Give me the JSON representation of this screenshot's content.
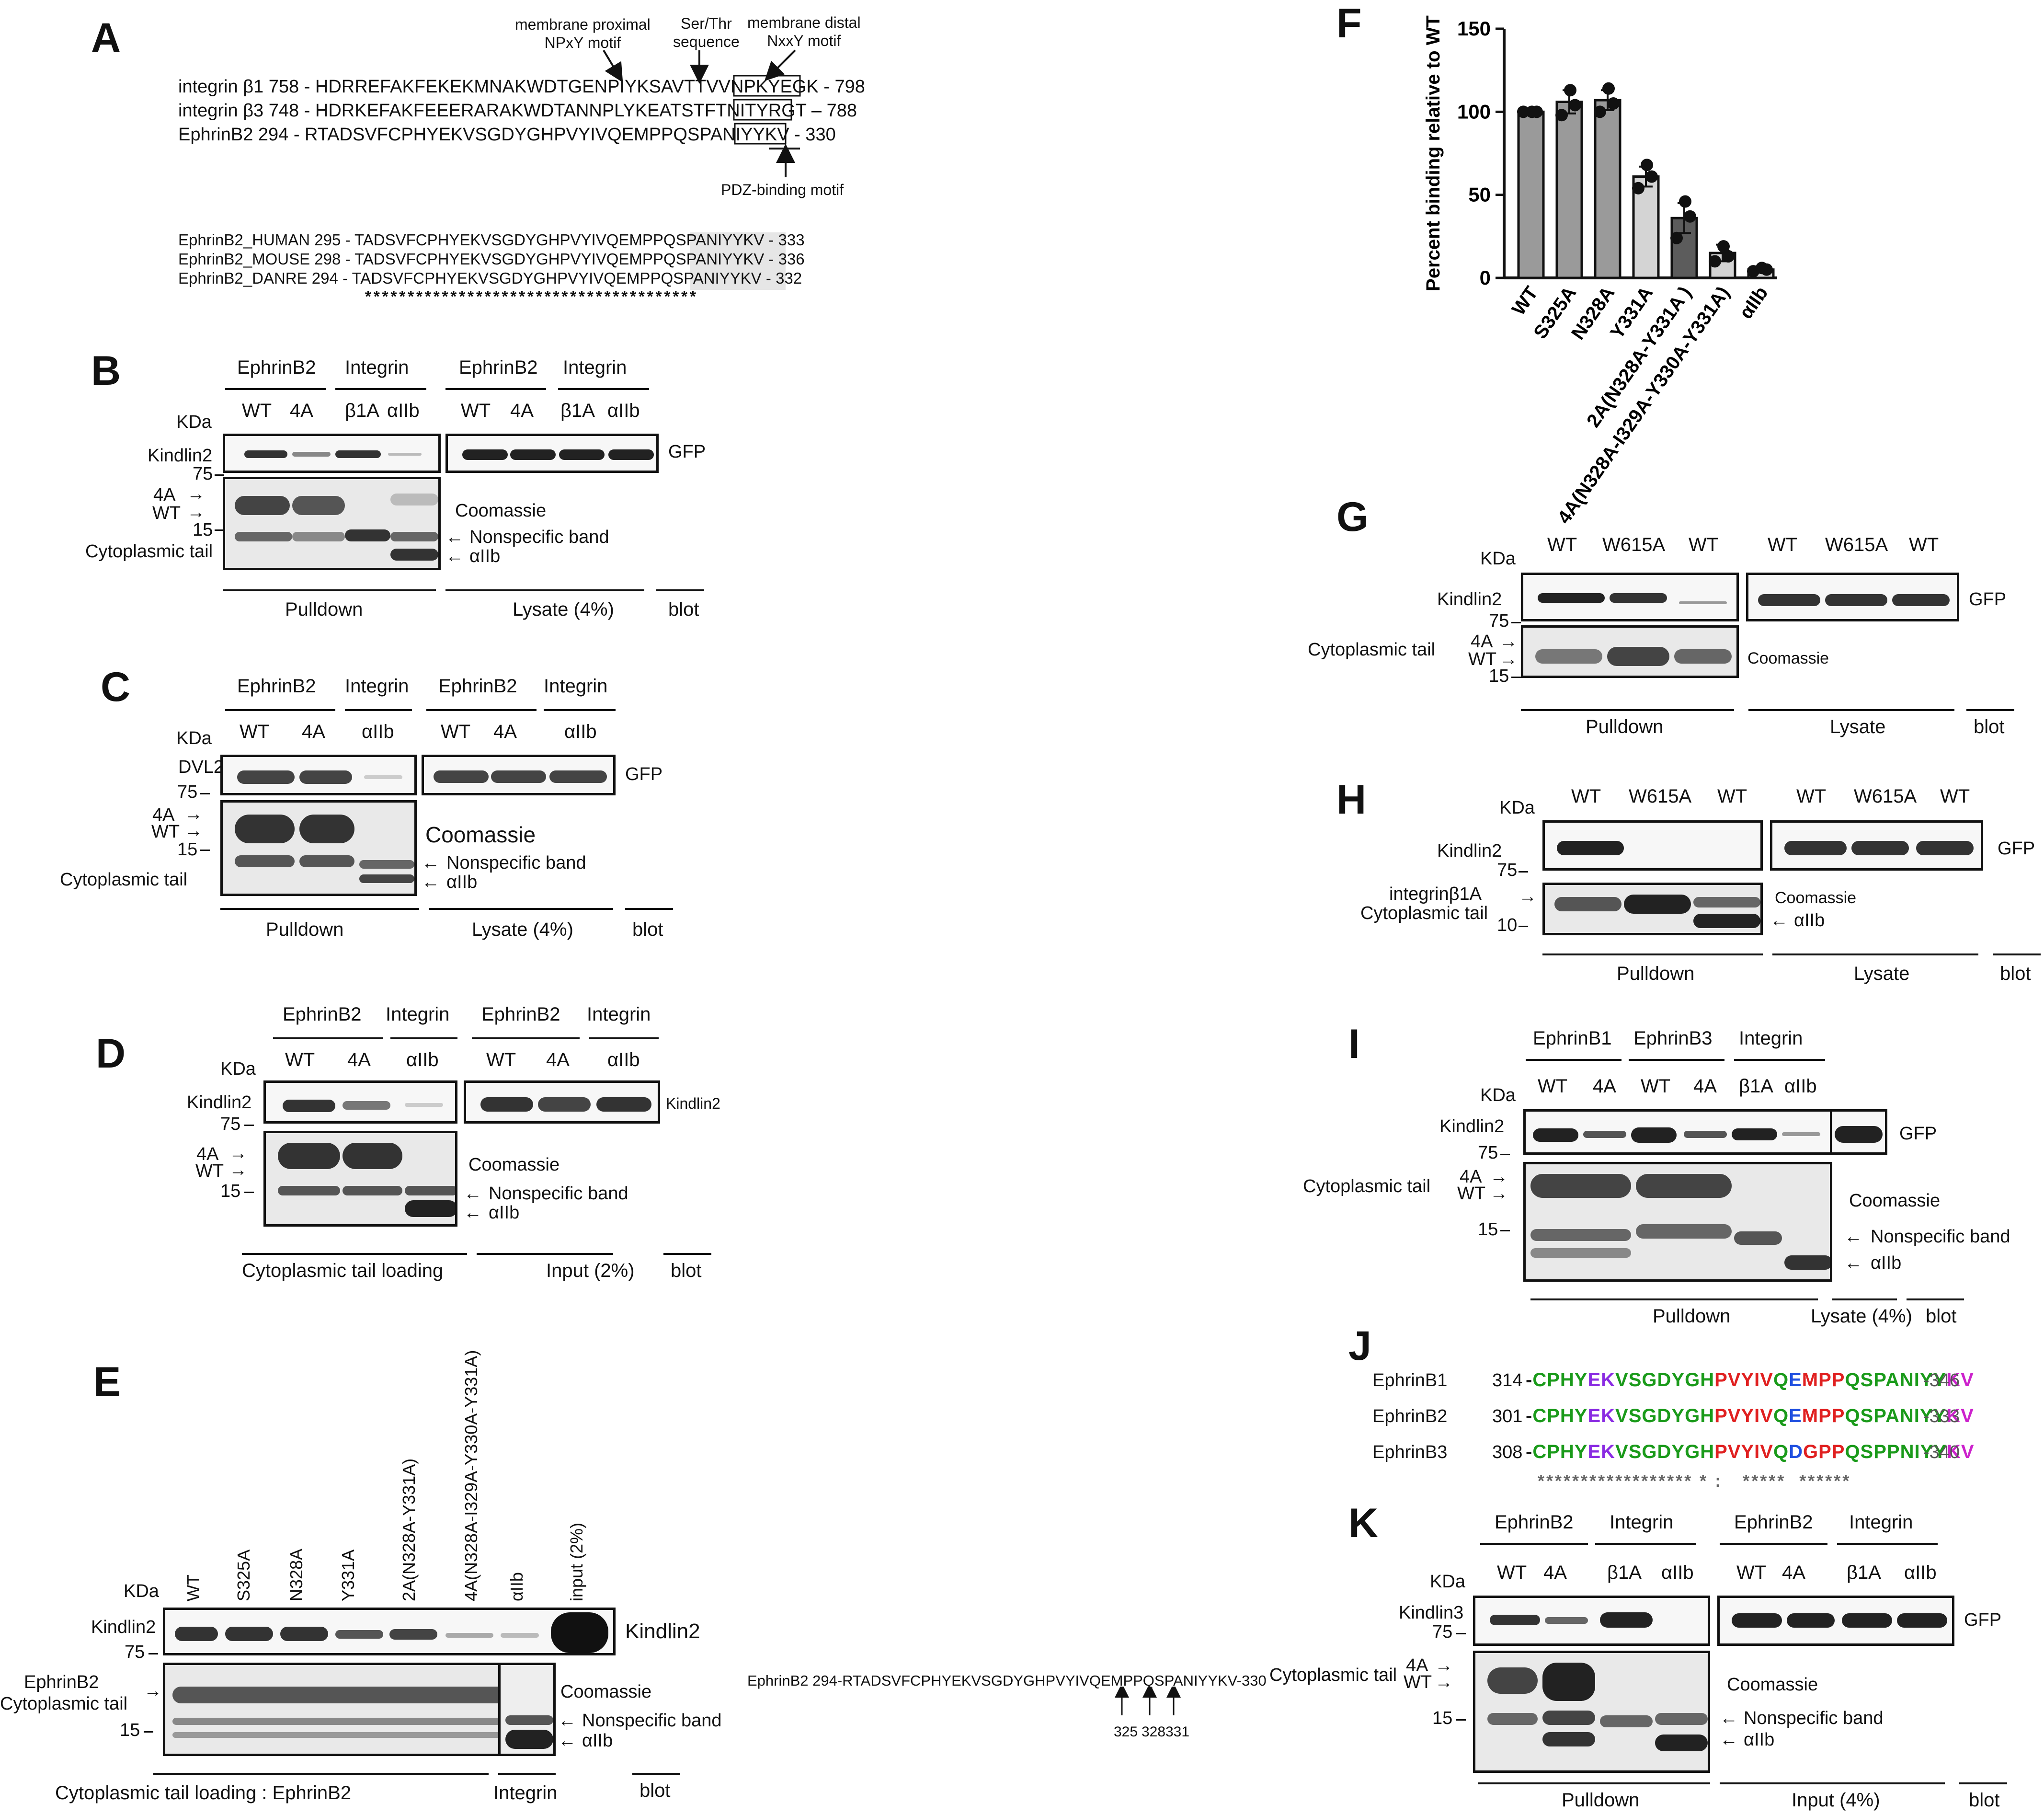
{
  "panels": {
    "A": {
      "label": "A",
      "annotations": {
        "npxy": "membrane proximal\nNPxY motif",
        "sert": "Ser/Thr\nsequence",
        "nxxy": "membrane distal\nNxxY motif",
        "pdz": "PDZ-binding motif"
      },
      "rows": [
        "integrin β1 758 - HDRREFAKFEKEKMNAKWDTGENPIYKSAVTTVVNPKYEGK - 798",
        "integrin β3 748 - HDRKEFAKFEEERARAKWDTANNPLYKEATSTFTNITYRGT – 788",
        "EphrinB2   294 - RTADSVFCPHYEKVSGDYGHPVYIVQEMPPQSPANIYYKV - 330"
      ],
      "species_rows": [
        "EphrinB2_HUMAN 295 - TADSVFCPHYEKVSGDYGHPVYIVQEMPPQSPANIYYKV - 333",
        "EphrinB2_MOUSE 298 - TADSVFCPHYEKVSGDYGHPVYIVQEMPPQSPANIYYKV - 336",
        "EphrinB2_DANRE  294 - TADSVFCPHYEKVSGDYGHPVYIVQEMPPQSPANIYYKV - 332"
      ],
      "stars": "***************************************"
    },
    "B": {
      "label": "B",
      "groups": [
        "EphrinB2",
        "Integrin",
        "EphrinB2",
        "Integrin"
      ],
      "lanes": [
        "WT",
        "4A",
        "β1A",
        "αIIb",
        "WT",
        "4A",
        "β1A",
        "αIIb"
      ],
      "kda": "KDa",
      "blot_label": "Kindlin2",
      "mw": [
        "75",
        "15"
      ],
      "right_top": "GFP",
      "right_labels": [
        "Coomassie",
        "Nonspecific band",
        "αIIb"
      ],
      "left_labels": [
        "4A",
        "WT",
        "Cytoplasmic tail"
      ],
      "bottom": [
        "Pulldown",
        "Lysate (4%)",
        "blot"
      ]
    },
    "C": {
      "label": "C",
      "groups": [
        "EphrinB2",
        "Integrin",
        "EphrinB2",
        "Integrin"
      ],
      "lanes": [
        "WT",
        "4A",
        "αIIb",
        "WT",
        "4A",
        "αIIb"
      ],
      "kda": "KDa",
      "blot_label": "DVL2",
      "mw": [
        "75",
        "15"
      ],
      "right_top": "GFP",
      "right_labels": [
        "Coomassie",
        "Nonspecific band",
        "αIIb"
      ],
      "left_labels": [
        "4A",
        "WT",
        "Cytoplasmic tail"
      ],
      "bottom": [
        "Pulldown",
        "Lysate (4%)",
        "blot"
      ]
    },
    "D": {
      "label": "D",
      "groups": [
        "EphrinB2",
        "Integrin",
        "EphrinB2",
        "Integrin"
      ],
      "lanes": [
        "WT",
        "4A",
        "αIIb",
        "WT",
        "4A",
        "αIIb"
      ],
      "kda": "KDa",
      "blot_label": "Kindlin2",
      "mw": [
        "75",
        "15"
      ],
      "right_top": "Kindlin2",
      "right_labels": [
        "Coomassie",
        "Nonspecific band",
        "αIIb"
      ],
      "left_labels": [
        "4A",
        "WT"
      ],
      "bottom": [
        "Cytoplasmic tail loading",
        "Input (2%)",
        "blot"
      ]
    },
    "E": {
      "label": "E",
      "lanes": [
        "WT",
        "S325A",
        "N328A",
        "Y331A",
        "2A(N328A-Y331A)",
        "4A(N328A-I329A-Y330A-Y331A)",
        "αIIb",
        "input (2%)"
      ],
      "kda": "KDa",
      "blot_label": "Kindlin2",
      "mw": [
        "75",
        "15"
      ],
      "right_top": "Kindlin2",
      "right_labels": [
        "Coomassie",
        "Nonspecific band",
        "αIIb"
      ],
      "left_labels": [
        "EphrinB2",
        "Cytoplasmic tail"
      ],
      "bottom": [
        "Cytoplasmic tail loading : EphrinB2",
        "Integrin",
        "blot"
      ],
      "seq": "EphrinB2  294-RTADSVFCPHYEKVSGDYGHPVYIVQEMPPQSPANIYYKV-330",
      "positions": [
        "325",
        "328",
        "331"
      ]
    },
    "F": {
      "label": "F"
    },
    "G": {
      "label": "G",
      "lanes": [
        "WT",
        "W615A",
        "WT",
        "WT",
        "W615A",
        "WT"
      ],
      "kda": "KDa",
      "blot_label": "Kindlin2",
      "mw": [
        "75",
        "15"
      ],
      "right_top": "GFP",
      "right_labels": [
        "Coomassie"
      ],
      "left_labels": [
        "Cytoplasmic tail",
        "4A",
        "WT"
      ],
      "bottom": [
        "Pulldown",
        "Lysate",
        "blot"
      ]
    },
    "H": {
      "label": "H",
      "lanes": [
        "WT",
        "W615A",
        "WT",
        "WT",
        "W615A",
        "WT"
      ],
      "kda": "KDa",
      "blot_label": "Kindlin2",
      "mw": [
        "75",
        "10"
      ],
      "right_top": "GFP",
      "right_labels": [
        "Coomassie",
        "αIIb"
      ],
      "left_labels": [
        "integrinβ1A",
        "Cytoplasmic tail"
      ],
      "bottom": [
        "Pulldown",
        "Lysate",
        "blot"
      ]
    },
    "I": {
      "label": "I",
      "groups": [
        "EphrinB1",
        "EphrinB3",
        "Integrin"
      ],
      "lanes": [
        "WT",
        "4A",
        "WT",
        "4A",
        "β1A",
        "αIIb"
      ],
      "kda": "KDa",
      "blot_label": "Kindlin2",
      "mw": [
        "75",
        "15"
      ],
      "right_top": "GFP",
      "right_labels": [
        "Coomassie",
        "Nonspecific band",
        "αIIb"
      ],
      "left_labels": [
        "Cytoplasmic tail",
        "4A",
        "WT"
      ],
      "bottom": [
        "Pulldown",
        "Lysate (4%)",
        "blot"
      ]
    },
    "J": {
      "label": "J",
      "rows": [
        {
          "name": "EphrinB1",
          "start": "314",
          "end": "-346"
        },
        {
          "name": "EphrinB2",
          "start": "301",
          "end": "-333"
        },
        {
          "name": "EphrinB3",
          "start": "308",
          "end": "-340"
        }
      ],
      "consensus": "****************** * :   *****  ******"
    },
    "K": {
      "label": "K",
      "groups": [
        "EphrinB2",
        "Integrin",
        "EphrinB2",
        "Integrin"
      ],
      "lanes": [
        "WT",
        "4A",
        "β1A",
        "αIIb",
        "WT",
        "4A",
        "β1A",
        "αIIb"
      ],
      "kda": "KDa",
      "blot_label": "Kindlin3",
      "mw": [
        "75",
        "15"
      ],
      "right_top": "GFP",
      "right_labels": [
        "Coomassie",
        "Nonspecific band",
        "αIIb"
      ],
      "left_labels": [
        "Cytoplasmic tail",
        "4A",
        "WT"
      ],
      "bottom": [
        "Pulldown",
        "Input (4%)",
        "blot"
      ]
    }
  },
  "chart_data": {
    "type": "bar",
    "title": "",
    "xlabel": "",
    "ylabel": "Percent binding relative to WT",
    "ylim": [
      0,
      150
    ],
    "yticks": [
      "0",
      "50",
      "100",
      "150"
    ],
    "categories": [
      "WT",
      "S325A",
      "N328A",
      "Y331A",
      "2A(N328A-Y331A )",
      "4A(N328A-I329A-Y330A-Y331A)",
      "αIIb"
    ],
    "values": [
      100,
      106,
      107,
      61,
      36,
      15,
      5
    ],
    "errors": [
      0,
      7,
      6,
      6,
      9,
      5,
      1
    ],
    "points": [
      [
        100,
        100,
        100
      ],
      [
        98,
        104,
        113
      ],
      [
        100,
        105,
        114
      ],
      [
        54,
        61,
        68
      ],
      [
        24,
        37,
        46
      ],
      [
        10,
        13,
        19
      ],
      [
        4,
        5,
        6
      ]
    ],
    "bar_colors": [
      "#9a9a9a",
      "#9a9a9a",
      "#9a9a9a",
      "#d4d4d4",
      "#5c5c5c",
      "#d4d4d4",
      "#d4d4d4"
    ]
  }
}
